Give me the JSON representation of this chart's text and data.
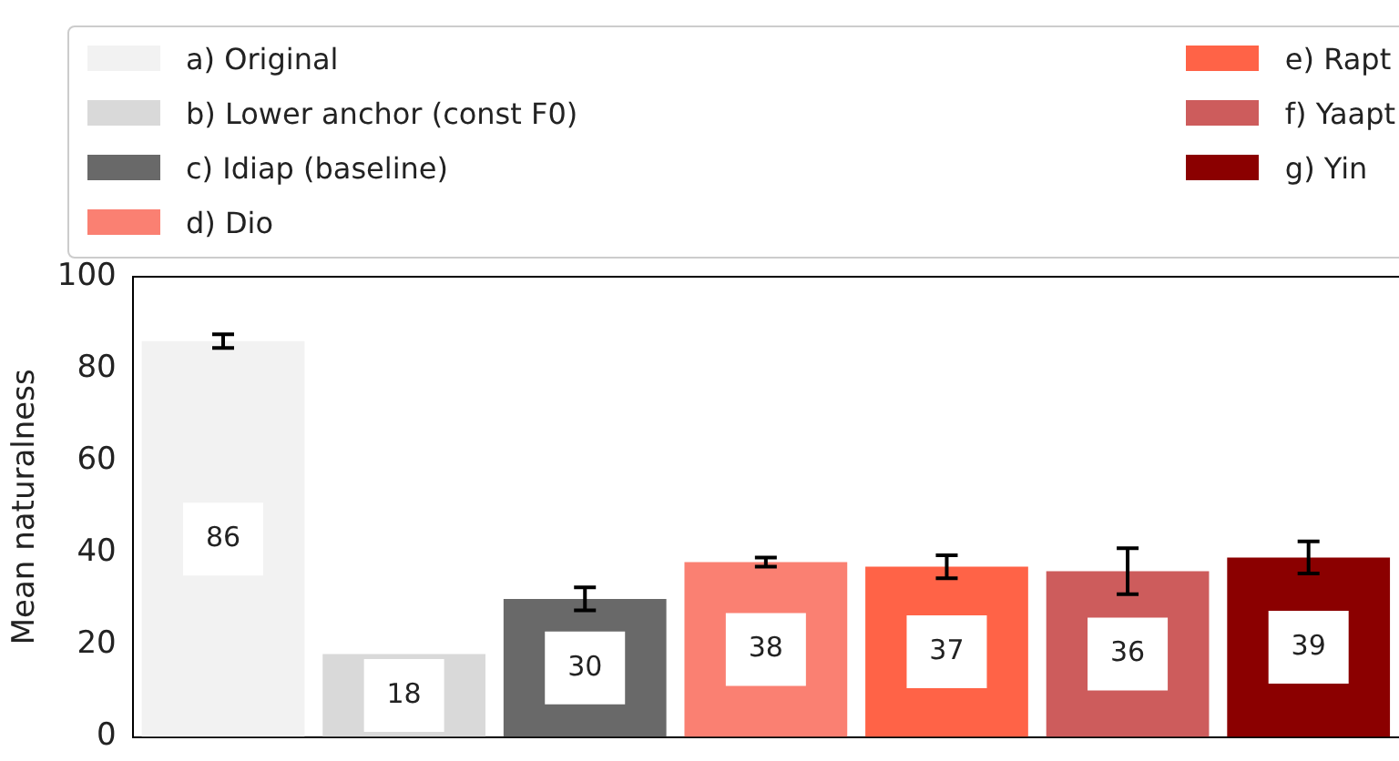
{
  "chart_data": {
    "type": "bar",
    "ylabel": "Mean naturalness",
    "categories": [
      null,
      null,
      null,
      null,
      null,
      null,
      null
    ],
    "series": [
      {
        "name": "a) Original",
        "color": "#f2f2f2",
        "values": [
          86,
          null,
          null,
          null,
          null,
          null,
          null
        ],
        "errors": [
          1.5,
          null,
          null,
          null,
          null,
          null,
          null
        ]
      },
      {
        "name": "b) Lower anchor (const F0)",
        "color": "#d9d9d9",
        "values": [
          null,
          18,
          null,
          null,
          null,
          null,
          null
        ],
        "errors": [
          null,
          null,
          null,
          null,
          null,
          null,
          null
        ]
      },
      {
        "name": "c) Idiap (baseline)",
        "color": "#696969",
        "values": [
          null,
          null,
          30,
          null,
          null,
          null,
          null
        ],
        "errors": [
          null,
          null,
          2.5,
          null,
          null,
          null,
          null
        ]
      },
      {
        "name": "d) Dio",
        "color": "#fa8072",
        "values": [
          null,
          null,
          null,
          38,
          null,
          null,
          null
        ],
        "errors": [
          null,
          null,
          null,
          1,
          null,
          null,
          null
        ]
      },
      {
        "name": "e) Rapt",
        "color": "#ff6347",
        "values": [
          null,
          null,
          null,
          null,
          37,
          null,
          null
        ],
        "errors": [
          null,
          null,
          null,
          null,
          2.5,
          null,
          null
        ]
      },
      {
        "name": "f) Yaapt",
        "color": "#cd5c5c",
        "values": [
          null,
          null,
          null,
          null,
          null,
          36,
          null
        ],
        "errors": [
          null,
          null,
          null,
          null,
          null,
          5,
          null
        ]
      },
      {
        "name": "g) Yin",
        "color": "#8b0000",
        "values": [
          null,
          null,
          null,
          null,
          null,
          null,
          39
        ],
        "errors": [
          null,
          null,
          null,
          null,
          null,
          null,
          3.5
        ]
      }
    ],
    "ylim": [
      0,
      100
    ],
    "yticks": [
      0,
      20,
      40,
      60,
      80,
      100
    ],
    "grid": false,
    "legend": "top",
    "data_labels": true,
    "tick_labels": "y"
  }
}
